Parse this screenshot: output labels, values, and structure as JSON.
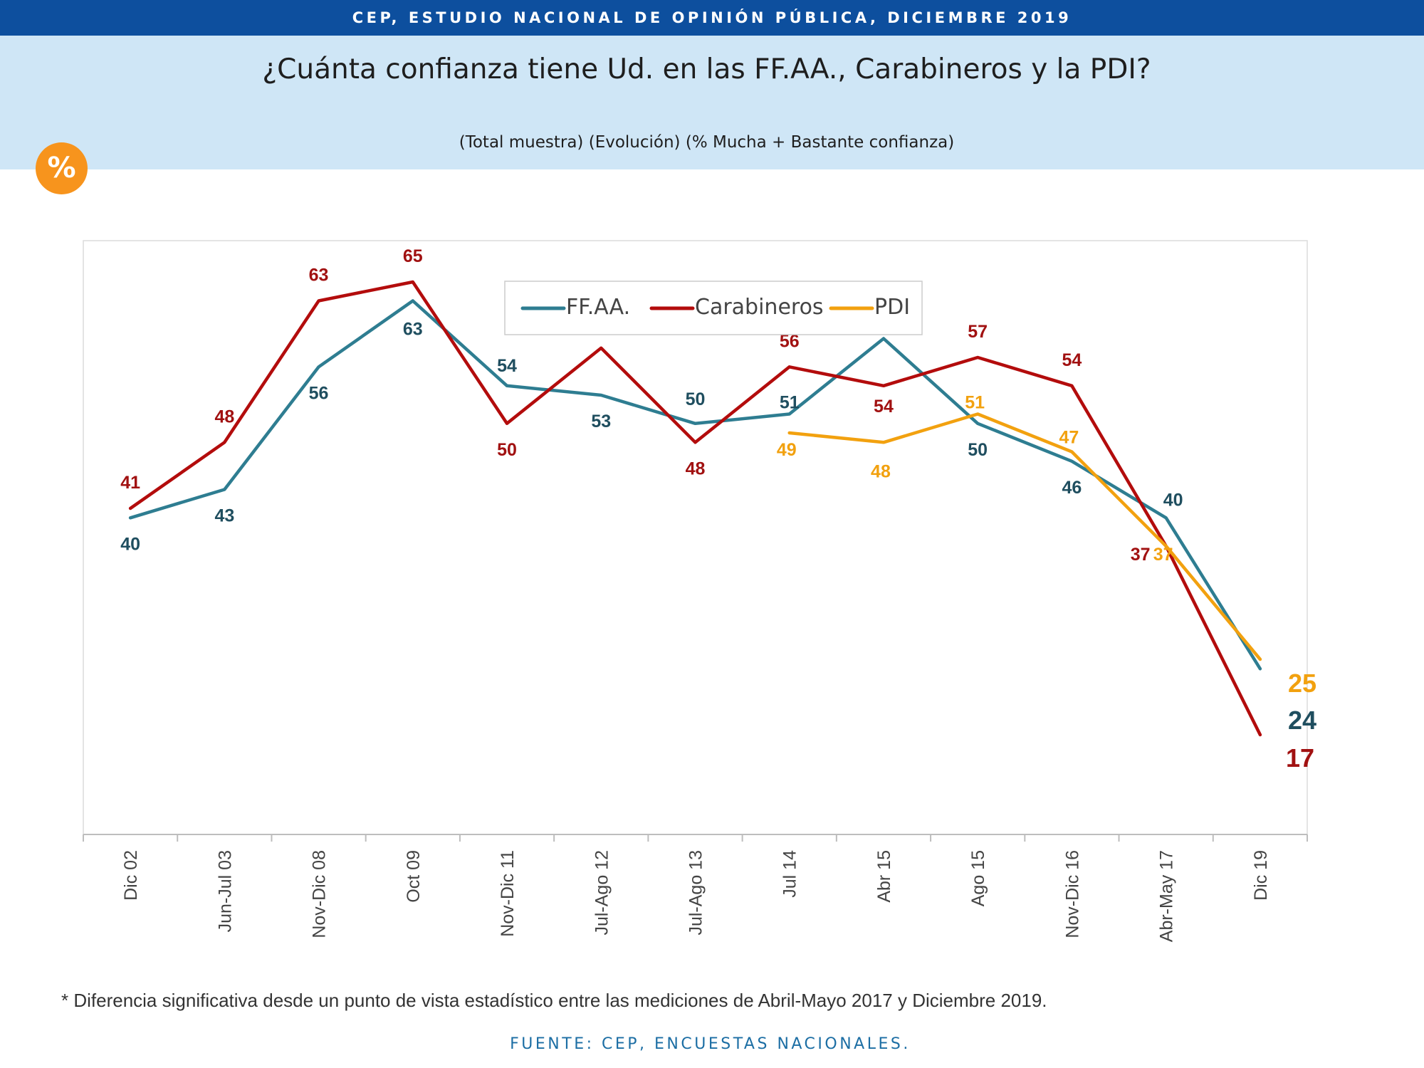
{
  "header": {
    "banner": "CEP, ESTUDIO NACIONAL DE OPINIÓN PÚBLICA, DICIEMBRE 2019",
    "title": "¿Cuánta confianza tiene Ud. en las FF.AA., Carabineros y la PDI?",
    "subtitle": "(Total muestra) (Evolución) (% Mucha + Bastante confianza)",
    "badge": "%"
  },
  "chart_data": {
    "type": "line",
    "categories": [
      "Dic 02",
      "Jun-Jul 03",
      "Nov-Dic 08",
      "Oct 09",
      "Nov-Dic 11",
      "Jul-Ago 12",
      "Jul-Ago 13",
      "Jul 14",
      "Abr 15",
      "Ago 15",
      "Nov-Dic 16",
      "Abr-May 17",
      "Dic 19"
    ],
    "series": [
      {
        "name": "FF.AA.",
        "color": "#2e7d91",
        "label_color": "#1f4e5f",
        "values": [
          40,
          43,
          56,
          63,
          54,
          53,
          50,
          51,
          59,
          50,
          46,
          40,
          24
        ]
      },
      {
        "name": "Carabineros",
        "color": "#b30c0c",
        "label_color": "#a11111",
        "values": [
          41,
          48,
          63,
          65,
          50,
          58,
          48,
          56,
          54,
          57,
          54,
          37,
          17
        ]
      },
      {
        "name": "PDI",
        "color": "#f2a10f",
        "label_color": "#f2a10f",
        "values": [
          null,
          null,
          null,
          null,
          null,
          null,
          null,
          49,
          48,
          51,
          47,
          37,
          25
        ]
      }
    ],
    "legend_position": "top-center",
    "grid": false
  },
  "footer": {
    "footnote": "* Diferencia significativa desde un punto de vista estadístico entre las mediciones de Abril-Mayo 2017 y Diciembre 2019.",
    "source": "FUENTE: CEP, ENCUESTAS NACIONALES."
  }
}
